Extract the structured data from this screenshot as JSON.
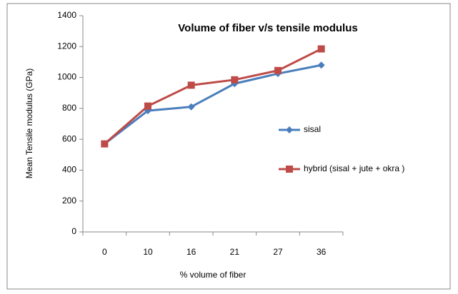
{
  "chart_data": {
    "type": "line",
    "title": "Volume of fiber v/s tensile modulus",
    "x_label": "% volume of fiber",
    "y_label": "Mean Tensile modulus (GPa)",
    "categories": [
      "0",
      "10",
      "16",
      "21",
      "27",
      "36"
    ],
    "series": [
      {
        "name": "sisal",
        "color": "#4a7ebb",
        "marker": "diamond",
        "values": [
          570,
          785,
          810,
          960,
          1025,
          1080
        ]
      },
      {
        "name": "hybrid (sisal  + jute + okra )",
        "color": "#be4b48",
        "marker": "square",
        "values": [
          570,
          815,
          950,
          985,
          1045,
          1185
        ]
      }
    ],
    "ylim": [
      0,
      1400
    ],
    "yticks": [
      0,
      200,
      400,
      600,
      800,
      1000,
      1200,
      1400
    ],
    "grid": false,
    "legend": "right"
  }
}
